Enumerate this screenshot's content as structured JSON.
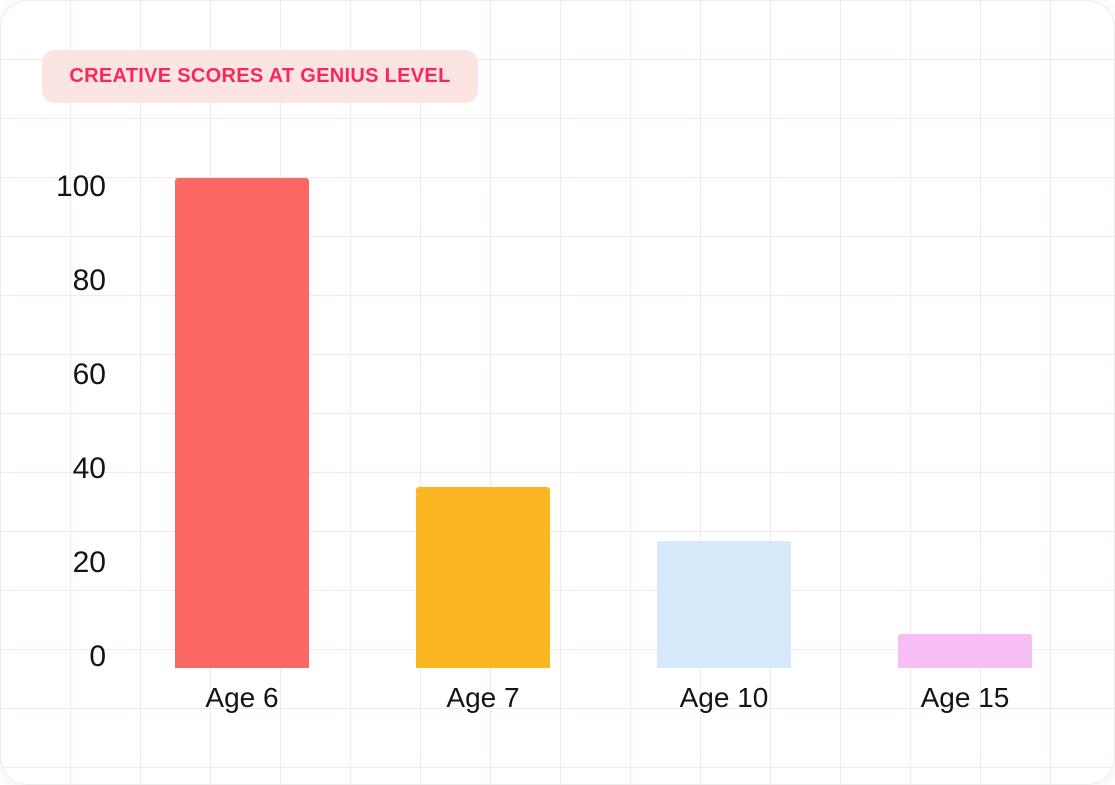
{
  "header": {
    "title": "CREATIVE SCORES AT GENIUS LEVEL"
  },
  "chart_data": {
    "type": "bar",
    "title": "CREATIVE SCORES AT GENIUS LEVEL",
    "categories": [
      "Age 6",
      "Age 7",
      "Age 10",
      "Age 15"
    ],
    "values": [
      100,
      37,
      26,
      7
    ],
    "bar_colors": [
      "#FB6763",
      "#FCB622",
      "#D6EAFB",
      "#F7BDF5"
    ],
    "y_ticks": [
      0,
      20,
      40,
      60,
      80,
      100
    ],
    "ylim": [
      0,
      100
    ],
    "xlabel": "",
    "ylabel": "",
    "legend_position": "none",
    "grid": "on"
  },
  "colors": {
    "title_text": "#F8285E",
    "title_badge_bg": "#FBE4E1",
    "axis_text": "#141414",
    "grid_line": "#F8E6EB",
    "card_bg": "#FFFFFF"
  }
}
